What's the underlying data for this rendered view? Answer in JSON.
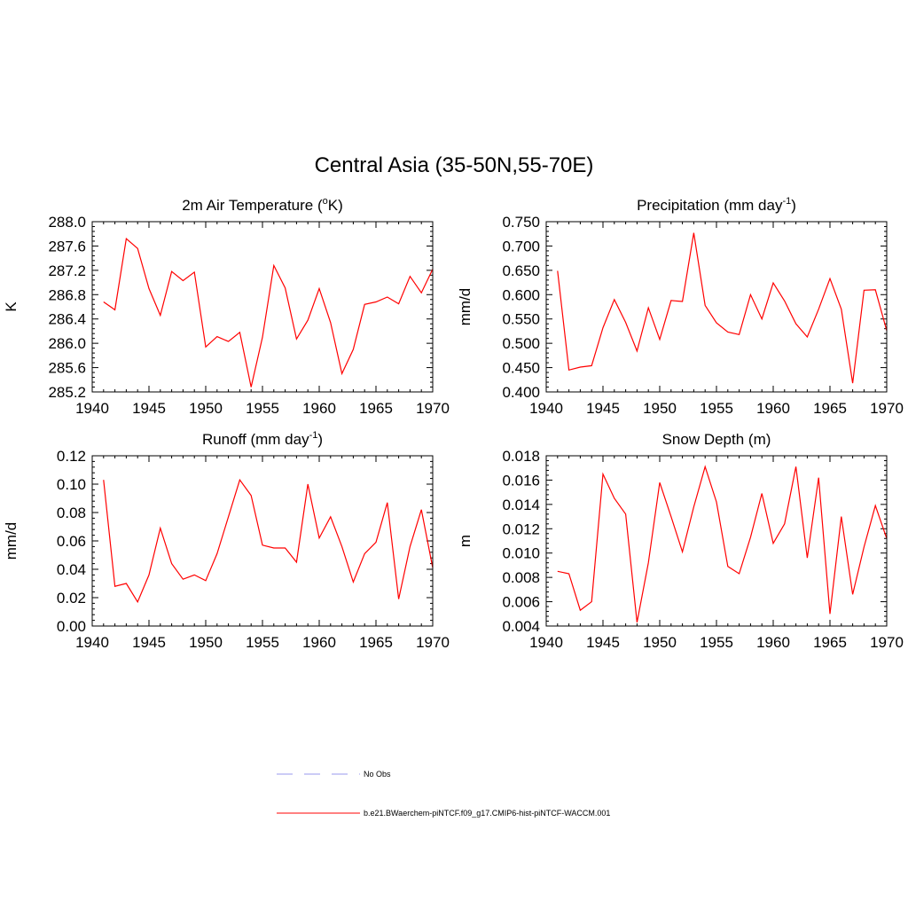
{
  "figure": {
    "title": "Central Asia (35-50N,55-70E)",
    "line_color": "#ff0000",
    "obs_color": "#9999ee"
  },
  "legend": {
    "items": [
      {
        "label": "No Obs",
        "style": "dashed",
        "color": "#9999ee"
      },
      {
        "label": "b.e21.BWaerchem-piNTCF.f09_g17.CMIP6-hist-piNTCF-WACCM.001",
        "style": "solid",
        "color": "#ff0000"
      }
    ]
  },
  "chart_data": [
    {
      "type": "line",
      "title": "2m Air Temperature (°K)",
      "title_parts": {
        "pre": "2m Air Temperature (",
        "sup": "o",
        "post": "K)"
      },
      "ylabel": "K",
      "xlim": [
        1940,
        1970
      ],
      "ylim": [
        285.2,
        288.0
      ],
      "xticks": [
        1940,
        1945,
        1950,
        1955,
        1960,
        1965,
        1970
      ],
      "yticks": [
        285.2,
        285.6,
        286.0,
        286.4,
        286.8,
        287.2,
        287.6,
        288.0
      ],
      "ytick_labels": [
        "285.2",
        "285.6",
        "286.0",
        "286.4",
        "286.8",
        "287.2",
        "287.6",
        "288.0"
      ],
      "x": [
        1941,
        1942,
        1943,
        1944,
        1945,
        1946,
        1947,
        1948,
        1949,
        1950,
        1951,
        1952,
        1953,
        1954,
        1955,
        1956,
        1957,
        1958,
        1959,
        1960,
        1961,
        1962,
        1963,
        1964,
        1965,
        1966,
        1967,
        1968,
        1969,
        1970
      ],
      "series": [
        {
          "values": [
            286.68,
            286.55,
            287.72,
            287.56,
            286.9,
            286.46,
            287.18,
            287.03,
            287.17,
            285.94,
            286.11,
            286.03,
            286.18,
            285.28,
            286.1,
            287.28,
            286.91,
            286.07,
            286.38,
            286.9,
            286.34,
            285.5,
            285.9,
            286.64,
            286.68,
            286.76,
            286.65,
            287.1,
            286.83,
            287.22
          ]
        }
      ]
    },
    {
      "type": "line",
      "title": "Precipitation (mm day-1)",
      "title_parts": {
        "pre": "Precipitation (mm day",
        "sup": "-1",
        "post": ")"
      },
      "ylabel": "mm/d",
      "xlim": [
        1940,
        1970
      ],
      "ylim": [
        0.4,
        0.75
      ],
      "xticks": [
        1940,
        1945,
        1950,
        1955,
        1960,
        1965,
        1970
      ],
      "yticks": [
        0.4,
        0.45,
        0.5,
        0.55,
        0.6,
        0.65,
        0.7,
        0.75
      ],
      "ytick_labels": [
        "0.400",
        "0.450",
        "0.500",
        "0.550",
        "0.600",
        "0.650",
        "0.700",
        "0.750"
      ],
      "x": [
        1941,
        1942,
        1943,
        1944,
        1945,
        1946,
        1947,
        1948,
        1949,
        1950,
        1951,
        1952,
        1953,
        1954,
        1955,
        1956,
        1957,
        1958,
        1959,
        1960,
        1961,
        1962,
        1963,
        1964,
        1965,
        1966,
        1967,
        1968,
        1969,
        1970
      ],
      "series": [
        {
          "values": [
            0.649,
            0.445,
            0.451,
            0.454,
            0.532,
            0.59,
            0.543,
            0.484,
            0.573,
            0.508,
            0.588,
            0.586,
            0.727,
            0.578,
            0.542,
            0.523,
            0.518,
            0.6,
            0.55,
            0.624,
            0.587,
            0.54,
            0.513,
            0.57,
            0.633,
            0.57,
            0.418,
            0.609,
            0.61,
            0.526
          ]
        }
      ]
    },
    {
      "type": "line",
      "title": "Runoff (mm day-1)",
      "title_parts": {
        "pre": "Runoff (mm day",
        "sup": "-1",
        "post": ")"
      },
      "ylabel": "mm/d",
      "xlim": [
        1940,
        1970
      ],
      "ylim": [
        0.0,
        0.12
      ],
      "xticks": [
        1940,
        1945,
        1950,
        1955,
        1960,
        1965,
        1970
      ],
      "yticks": [
        0.0,
        0.02,
        0.04,
        0.06,
        0.08,
        0.1,
        0.12
      ],
      "ytick_labels": [
        "0.00",
        "0.02",
        "0.04",
        "0.06",
        "0.08",
        "0.10",
        "0.12"
      ],
      "x": [
        1941,
        1942,
        1943,
        1944,
        1945,
        1946,
        1947,
        1948,
        1949,
        1950,
        1951,
        1952,
        1953,
        1954,
        1955,
        1956,
        1957,
        1958,
        1959,
        1960,
        1961,
        1962,
        1963,
        1964,
        1965,
        1966,
        1967,
        1968,
        1969,
        1970
      ],
      "series": [
        {
          "values": [
            0.103,
            0.028,
            0.03,
            0.017,
            0.036,
            0.069,
            0.044,
            0.033,
            0.036,
            0.032,
            0.051,
            0.077,
            0.103,
            0.092,
            0.057,
            0.055,
            0.055,
            0.045,
            0.1,
            0.062,
            0.077,
            0.056,
            0.031,
            0.051,
            0.059,
            0.087,
            0.019,
            0.056,
            0.082,
            0.041
          ]
        }
      ]
    },
    {
      "type": "line",
      "title": "Snow Depth (m)",
      "title_parts": {
        "pre": "Snow Depth (m)",
        "sup": "",
        "post": ""
      },
      "ylabel": "m",
      "xlim": [
        1940,
        1970
      ],
      "ylim": [
        0.004,
        0.018
      ],
      "xticks": [
        1940,
        1945,
        1950,
        1955,
        1960,
        1965,
        1970
      ],
      "yticks": [
        0.004,
        0.006,
        0.008,
        0.01,
        0.012,
        0.014,
        0.016,
        0.018
      ],
      "ytick_labels": [
        "0.004",
        "0.006",
        "0.008",
        "0.010",
        "0.012",
        "0.014",
        "0.016",
        "0.018"
      ],
      "x": [
        1941,
        1942,
        1943,
        1944,
        1945,
        1946,
        1947,
        1948,
        1949,
        1950,
        1951,
        1952,
        1953,
        1954,
        1955,
        1956,
        1957,
        1958,
        1959,
        1960,
        1961,
        1962,
        1963,
        1964,
        1965,
        1966,
        1967,
        1968,
        1969,
        1970
      ],
      "series": [
        {
          "values": [
            0.0085,
            0.0083,
            0.0053,
            0.006,
            0.0165,
            0.0145,
            0.0132,
            0.0043,
            0.0092,
            0.0158,
            0.013,
            0.0101,
            0.0138,
            0.0171,
            0.0142,
            0.0089,
            0.0083,
            0.0113,
            0.0149,
            0.0108,
            0.0124,
            0.0171,
            0.0096,
            0.0162,
            0.005,
            0.013,
            0.0066,
            0.0105,
            0.0139,
            0.0112
          ]
        }
      ]
    }
  ]
}
